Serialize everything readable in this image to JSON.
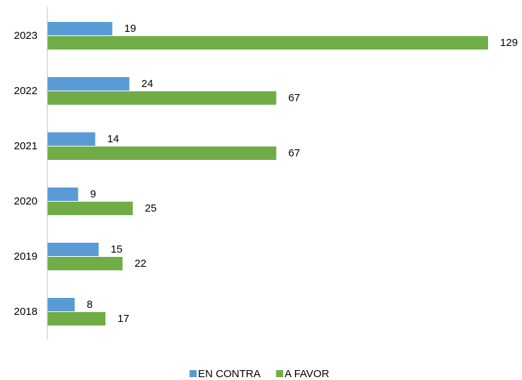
{
  "chart_data": {
    "type": "hbar",
    "categories": [
      "2023",
      "2022",
      "2021",
      "2020",
      "2019",
      "2018"
    ],
    "series": [
      {
        "name": "EN CONTRA",
        "color": "#5b9bd5",
        "values": [
          19,
          24,
          14,
          9,
          15,
          8
        ]
      },
      {
        "name": "A FAVOR",
        "color": "#70ad47",
        "values": [
          129,
          67,
          67,
          25,
          22,
          17
        ]
      }
    ],
    "xlim": [
      0,
      135
    ],
    "legend": "bottom"
  }
}
